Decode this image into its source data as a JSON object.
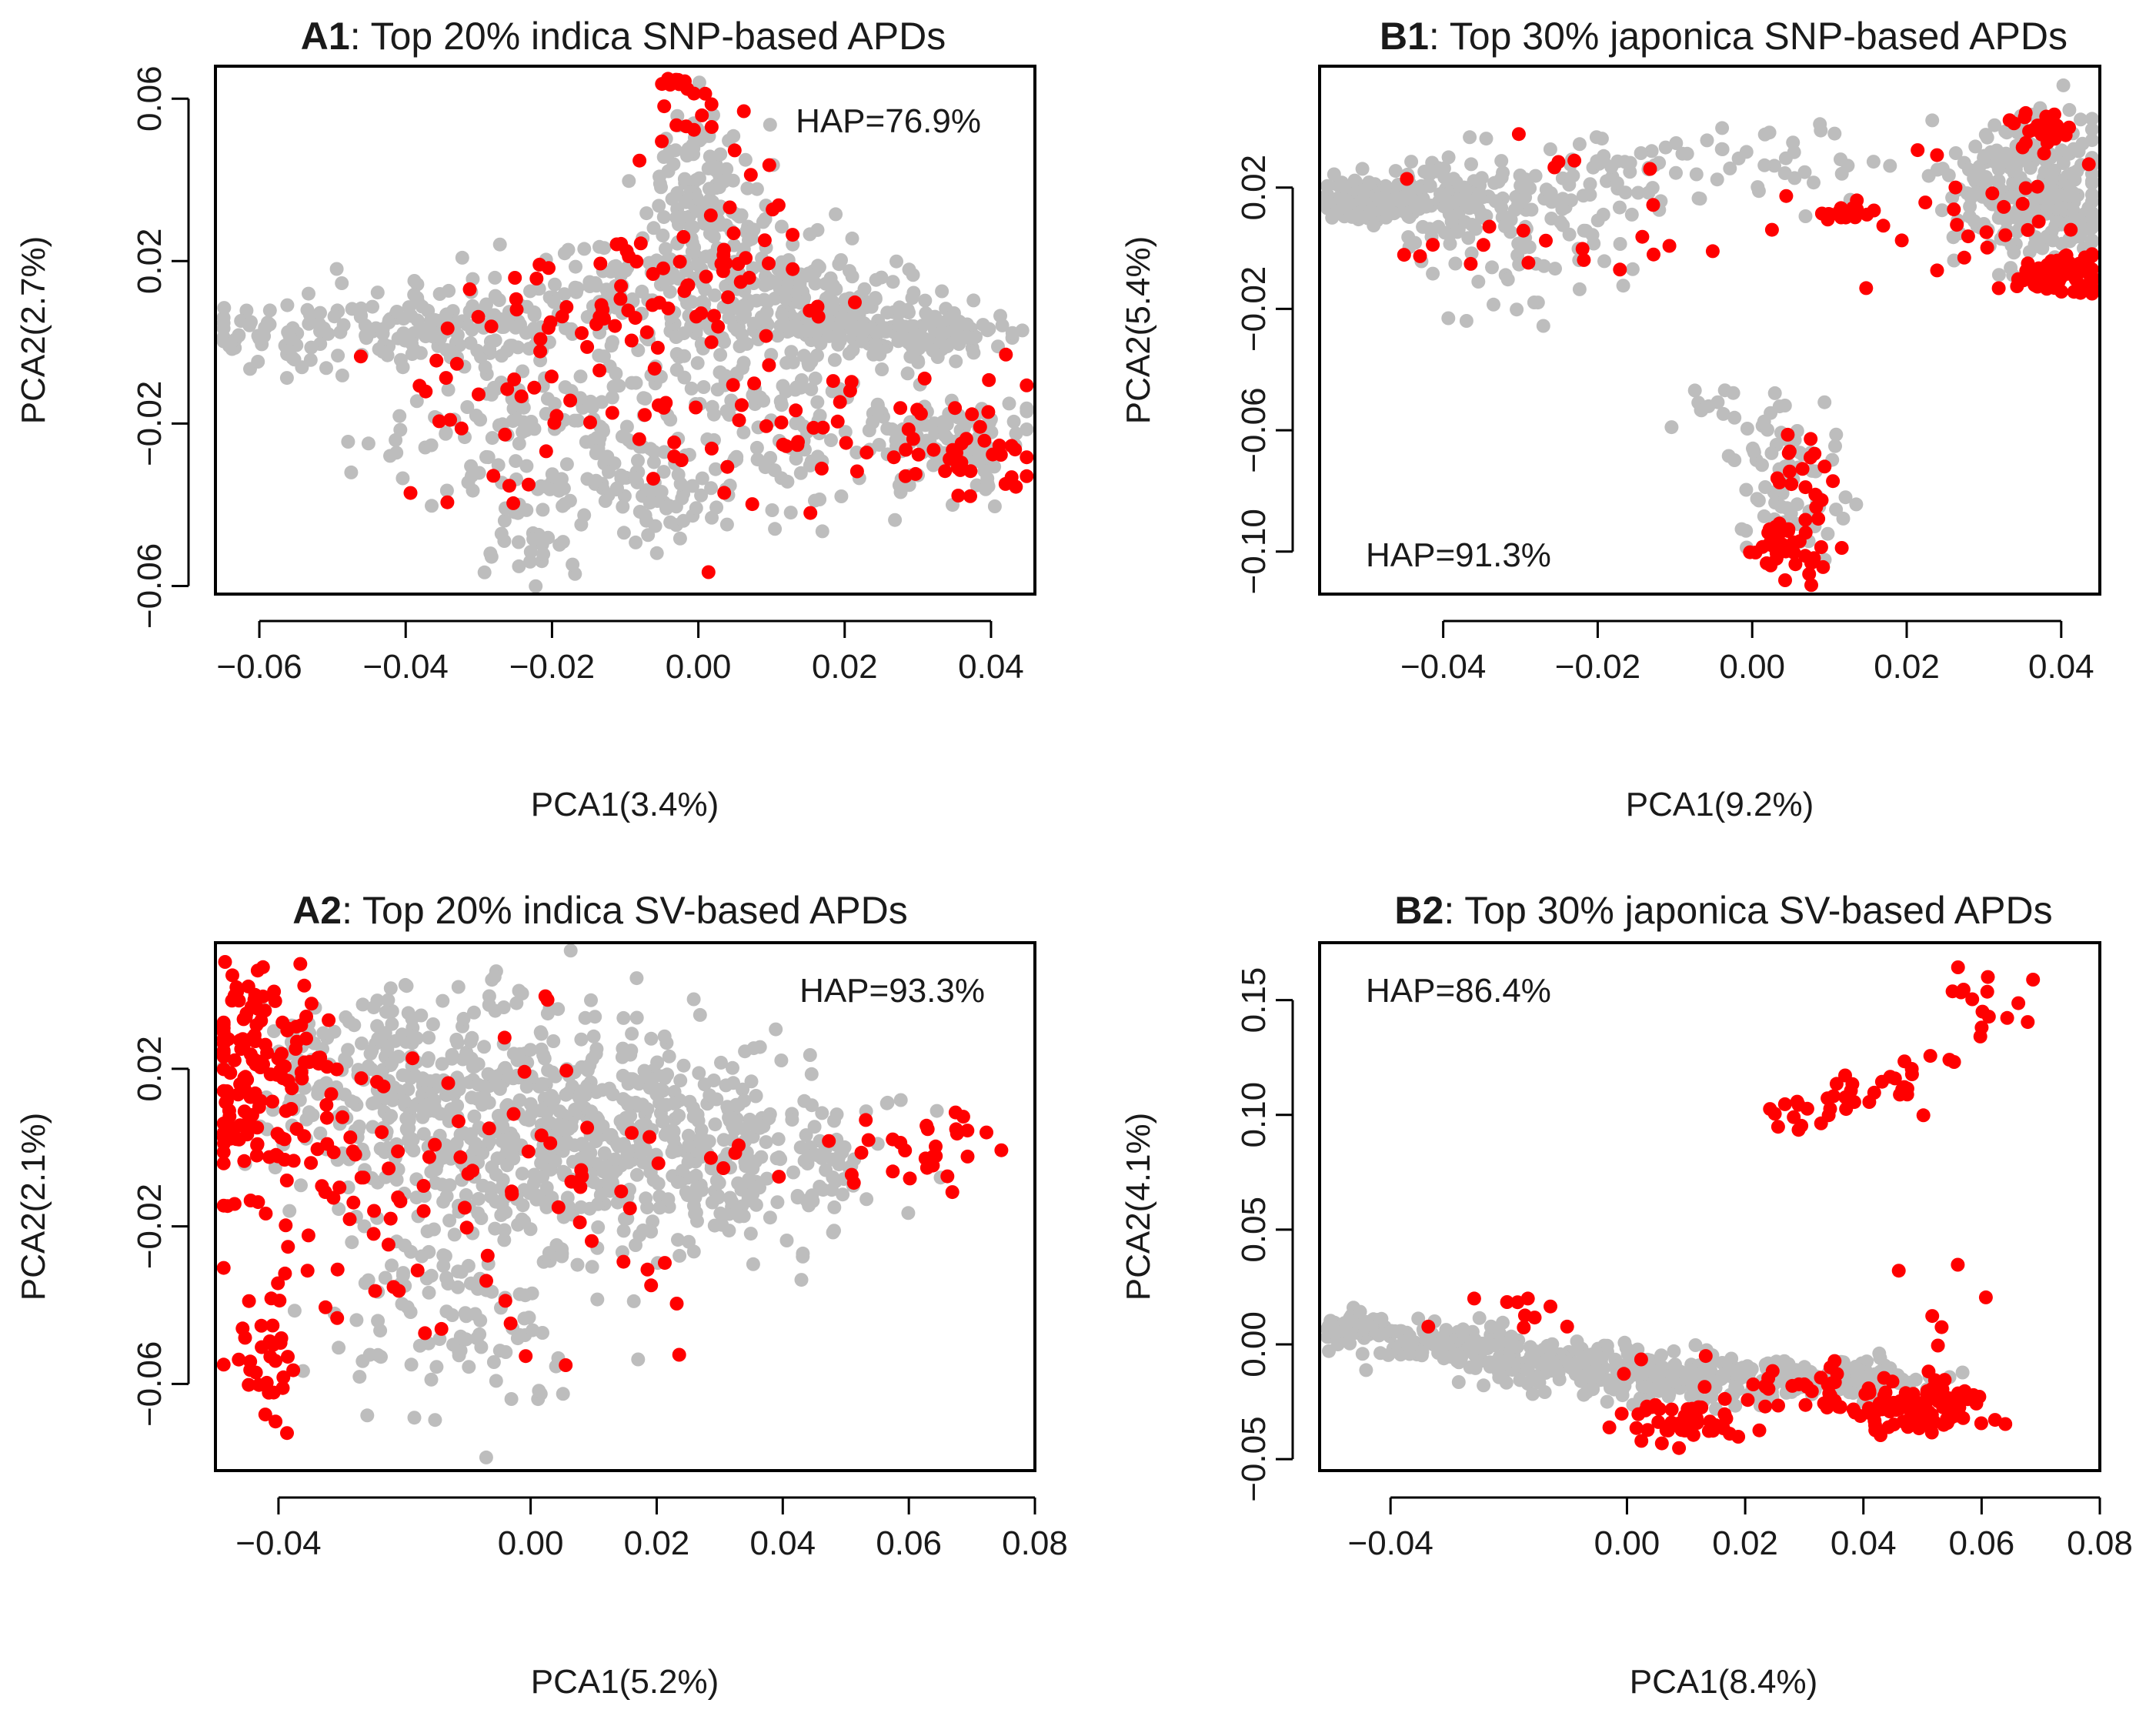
{
  "figure": {
    "background": "#ffffff",
    "point_colors": {
      "background": "#bdbdbd",
      "highlight": "#ff0000"
    }
  },
  "chart_data": [
    {
      "id": "A1",
      "type": "scatter",
      "title_bold": "A1",
      "title_rest": ": Top 20% indica SNP-based APDs",
      "xlabel": "PCA1(3.4%)",
      "ylabel": "PCA2(2.7%)",
      "xlim": [
        -0.066,
        0.046
      ],
      "ylim": [
        -0.062,
        0.068
      ],
      "xticks": [
        -0.06,
        -0.04,
        -0.02,
        0.0,
        0.02,
        0.04
      ],
      "xtick_labels": [
        "−0.06",
        "−0.04",
        "−0.02",
        "0.00",
        "0.02",
        "0.04"
      ],
      "yticks": [
        -0.06,
        -0.02,
        0.02,
        0.06
      ],
      "ytick_labels": [
        "−0.06",
        "−0.02",
        "0.02",
        "0.06"
      ],
      "annotation": "HAP=76.9%",
      "annotation_pos": "top-right",
      "series": [
        {
          "name": "background",
          "color": "#bdbdbd",
          "clusters": [
            {
              "cx": -0.058,
              "cy": 0.0,
              "sx": 0.006,
              "sy": 0.004,
              "n": 45
            },
            {
              "cx": -0.045,
              "cy": 0.006,
              "sx": 0.008,
              "sy": 0.004,
              "n": 70
            },
            {
              "cx": -0.03,
              "cy": 0.004,
              "sx": 0.008,
              "sy": 0.006,
              "n": 70
            },
            {
              "cx": -0.02,
              "cy": -0.02,
              "sx": 0.012,
              "sy": 0.012,
              "n": 170
            },
            {
              "cx": -0.022,
              "cy": -0.05,
              "sx": 0.003,
              "sy": 0.004,
              "n": 25
            },
            {
              "cx": -0.01,
              "cy": 0.012,
              "sx": 0.01,
              "sy": 0.006,
              "n": 90
            },
            {
              "cx": 0.0,
              "cy": 0.036,
              "sx": 0.004,
              "sy": 0.01,
              "n": 120
            },
            {
              "cx": 0.008,
              "cy": 0.012,
              "sx": 0.01,
              "sy": 0.01,
              "n": 170
            },
            {
              "cx": 0.02,
              "cy": 0.006,
              "sx": 0.008,
              "sy": 0.004,
              "n": 130
            },
            {
              "cx": 0.032,
              "cy": 0.002,
              "sx": 0.006,
              "sy": 0.003,
              "n": 70
            },
            {
              "cx": 0.015,
              "cy": -0.02,
              "sx": 0.012,
              "sy": 0.01,
              "n": 120
            },
            {
              "cx": 0.035,
              "cy": -0.026,
              "sx": 0.005,
              "sy": 0.006,
              "n": 90
            },
            {
              "cx": -0.008,
              "cy": -0.038,
              "sx": 0.01,
              "sy": 0.006,
              "n": 60
            }
          ]
        },
        {
          "name": "highlight",
          "color": "#ff0000",
          "clusters": [
            {
              "cx": -0.003,
              "cy": 0.064,
              "sx": 0.0015,
              "sy": 0.0015,
              "n": 12
            },
            {
              "cx": 0.0,
              "cy": 0.052,
              "sx": 0.005,
              "sy": 0.005,
              "n": 12
            },
            {
              "cx": -0.012,
              "cy": 0.01,
              "sx": 0.01,
              "sy": 0.007,
              "n": 40
            },
            {
              "cx": -0.022,
              "cy": -0.012,
              "sx": 0.012,
              "sy": 0.012,
              "n": 50
            },
            {
              "cx": 0.005,
              "cy": 0.024,
              "sx": 0.006,
              "sy": 0.01,
              "n": 25
            },
            {
              "cx": 0.012,
              "cy": -0.02,
              "sx": 0.012,
              "sy": 0.012,
              "n": 35
            },
            {
              "cx": 0.038,
              "cy": -0.03,
              "sx": 0.005,
              "sy": 0.004,
              "n": 25
            },
            {
              "cx": 0.03,
              "cy": -0.02,
              "sx": 0.006,
              "sy": 0.008,
              "n": 15
            }
          ]
        }
      ]
    },
    {
      "id": "B1",
      "type": "scatter",
      "title_bold": "B1",
      "title_rest": ": Top 30% japonica SNP-based APDs",
      "xlabel": "PCA1(9.2%)",
      "ylabel": "PCA2(5.4%)",
      "xlim": [
        -0.056,
        0.045
      ],
      "ylim": [
        -0.114,
        0.06
      ],
      "xticks": [
        -0.04,
        -0.02,
        0.0,
        0.02,
        0.04
      ],
      "xtick_labels": [
        "−0.04",
        "−0.02",
        "0.00",
        "0.02",
        "0.04"
      ],
      "yticks": [
        -0.1,
        -0.06,
        -0.02,
        0.02
      ],
      "ytick_labels": [
        "−0.10",
        "−0.06",
        "−0.02",
        "0.02"
      ],
      "annotation": "HAP=91.3%",
      "annotation_pos": "bottom-left",
      "series": [
        {
          "name": "background",
          "color": "#bdbdbd",
          "clusters": [
            {
              "cx": -0.05,
              "cy": 0.016,
              "sx": 0.004,
              "sy": 0.003,
              "n": 90
            },
            {
              "cx": -0.04,
              "cy": 0.016,
              "sx": 0.005,
              "sy": 0.006,
              "n": 80
            },
            {
              "cx": -0.03,
              "cy": 0.012,
              "sx": 0.008,
              "sy": 0.01,
              "n": 70
            },
            {
              "cx": -0.018,
              "cy": 0.024,
              "sx": 0.008,
              "sy": 0.008,
              "n": 55
            },
            {
              "cx": -0.03,
              "cy": -0.01,
              "sx": 0.006,
              "sy": 0.01,
              "n": 25
            },
            {
              "cx": 0.005,
              "cy": 0.028,
              "sx": 0.008,
              "sy": 0.008,
              "n": 30
            },
            {
              "cx": 0.035,
              "cy": 0.022,
              "sx": 0.005,
              "sy": 0.012,
              "n": 200
            },
            {
              "cx": 0.04,
              "cy": 0.012,
              "sx": 0.003,
              "sy": 0.006,
              "n": 60
            },
            {
              "cx": 0.003,
              "cy": -0.07,
              "sx": 0.003,
              "sy": 0.012,
              "n": 50
            },
            {
              "cx": 0.006,
              "cy": -0.09,
              "sx": 0.003,
              "sy": 0.006,
              "n": 25
            },
            {
              "cx": -0.005,
              "cy": -0.055,
              "sx": 0.004,
              "sy": 0.004,
              "n": 10
            }
          ]
        },
        {
          "name": "highlight",
          "color": "#ff0000",
          "clusters": [
            {
              "cx": 0.04,
              "cy": -0.008,
              "sx": 0.003,
              "sy": 0.003,
              "n": 80
            },
            {
              "cx": 0.038,
              "cy": 0.038,
              "sx": 0.003,
              "sy": 0.003,
              "n": 30
            },
            {
              "cx": 0.012,
              "cy": 0.012,
              "sx": 0.002,
              "sy": 0.0015,
              "n": 18
            },
            {
              "cx": 0.028,
              "cy": 0.01,
              "sx": 0.008,
              "sy": 0.012,
              "n": 25
            },
            {
              "cx": 0.005,
              "cy": -0.1,
              "sx": 0.003,
              "sy": 0.005,
              "n": 35
            },
            {
              "cx": 0.007,
              "cy": -0.075,
              "sx": 0.003,
              "sy": 0.012,
              "n": 20
            },
            {
              "cx": -0.022,
              "cy": 0.005,
              "sx": 0.012,
              "sy": 0.015,
              "n": 25
            }
          ]
        }
      ]
    },
    {
      "id": "A2",
      "type": "scatter",
      "title_bold": "A2",
      "title_rest": ": Top 20% indica SV-based APDs",
      "xlabel": "PCA1(5.2%)",
      "ylabel": "PCA2(2.1%)",
      "xlim": [
        -0.05,
        0.08
      ],
      "ylim": [
        -0.082,
        0.052
      ],
      "xticks": [
        -0.04,
        0.0,
        0.02,
        0.04,
        0.06,
        0.08
      ],
      "xtick_labels": [
        "−0.04",
        "0.00",
        "0.02",
        "0.04",
        "0.06",
        "0.08"
      ],
      "yticks": [
        -0.06,
        -0.02,
        0.02
      ],
      "ytick_labels": [
        "−0.06",
        "−0.02",
        "0.02"
      ],
      "annotation": "HAP=93.3%",
      "annotation_pos": "top-right",
      "series": [
        {
          "name": "background",
          "color": "#bdbdbd",
          "clusters": [
            {
              "cx": -0.015,
              "cy": 0.01,
              "sx": 0.012,
              "sy": 0.015,
              "n": 260
            },
            {
              "cx": 0.005,
              "cy": 0.005,
              "sx": 0.015,
              "sy": 0.015,
              "n": 320
            },
            {
              "cx": 0.025,
              "cy": 0.0,
              "sx": 0.012,
              "sy": 0.012,
              "n": 180
            },
            {
              "cx": 0.04,
              "cy": -0.005,
              "sx": 0.01,
              "sy": 0.01,
              "n": 80
            },
            {
              "cx": -0.01,
              "cy": -0.04,
              "sx": 0.012,
              "sy": 0.015,
              "n": 120
            },
            {
              "cx": -0.03,
              "cy": 0.025,
              "sx": 0.008,
              "sy": 0.008,
              "n": 60
            }
          ]
        },
        {
          "name": "highlight",
          "color": "#ff0000",
          "clusters": [
            {
              "cx": -0.045,
              "cy": 0.02,
              "sx": 0.003,
              "sy": 0.015,
              "n": 90
            },
            {
              "cx": -0.038,
              "cy": 0.02,
              "sx": 0.006,
              "sy": 0.012,
              "n": 45
            },
            {
              "cx": -0.043,
              "cy": -0.055,
              "sx": 0.003,
              "sy": 0.01,
              "n": 30
            },
            {
              "cx": -0.025,
              "cy": -0.01,
              "sx": 0.015,
              "sy": 0.02,
              "n": 70
            },
            {
              "cx": 0.062,
              "cy": 0.0,
              "sx": 0.007,
              "sy": 0.005,
              "n": 30
            },
            {
              "cx": 0.0,
              "cy": -0.01,
              "sx": 0.02,
              "sy": 0.02,
              "n": 45
            }
          ]
        }
      ]
    },
    {
      "id": "B2",
      "type": "scatter",
      "title_bold": "B2",
      "title_rest": ": Top 30% japonica SV-based APDs",
      "xlabel": "PCA1(8.4%)",
      "ylabel": "PCA2(4.1%)",
      "xlim": [
        -0.052,
        0.08
      ],
      "ylim": [
        -0.055,
        0.175
      ],
      "xticks": [
        -0.04,
        0.0,
        0.02,
        0.04,
        0.06,
        0.08
      ],
      "xtick_labels": [
        "−0.04",
        "0.00",
        "0.02",
        "0.04",
        "0.06",
        "0.08"
      ],
      "yticks": [
        -0.05,
        0.0,
        0.05,
        0.1,
        0.15
      ],
      "ytick_labels": [
        "−0.05",
        "0.00",
        "0.05",
        "0.10",
        "0.15"
      ],
      "annotation": "HAP=86.4%",
      "annotation_pos": "top-left",
      "series": [
        {
          "name": "background",
          "color": "#bdbdbd",
          "clusters": [
            {
              "cx": -0.045,
              "cy": 0.008,
              "sx": 0.003,
              "sy": 0.003,
              "n": 70
            },
            {
              "cx": -0.03,
              "cy": 0.0,
              "sx": 0.007,
              "sy": 0.005,
              "n": 110
            },
            {
              "cx": -0.012,
              "cy": -0.008,
              "sx": 0.007,
              "sy": 0.005,
              "n": 110
            },
            {
              "cx": 0.005,
              "cy": -0.014,
              "sx": 0.008,
              "sy": 0.005,
              "n": 130
            },
            {
              "cx": 0.025,
              "cy": -0.016,
              "sx": 0.01,
              "sy": 0.005,
              "n": 120
            },
            {
              "cx": 0.04,
              "cy": -0.016,
              "sx": 0.006,
              "sy": 0.004,
              "n": 60
            }
          ]
        },
        {
          "name": "highlight",
          "color": "#ff0000",
          "clusters": [
            {
              "cx": 0.01,
              "cy": -0.034,
              "sx": 0.005,
              "sy": 0.004,
              "n": 45
            },
            {
              "cx": 0.05,
              "cy": -0.028,
              "sx": 0.006,
              "sy": 0.005,
              "n": 90
            },
            {
              "cx": 0.03,
              "cy": -0.02,
              "sx": 0.012,
              "sy": 0.006,
              "n": 50
            },
            {
              "cx": -0.02,
              "cy": 0.012,
              "sx": 0.008,
              "sy": 0.006,
              "n": 10
            },
            {
              "cx": 0.06,
              "cy": 0.145,
              "sx": 0.004,
              "sy": 0.008,
              "n": 15
            },
            {
              "cx": 0.04,
              "cy": 0.11,
              "sx": 0.005,
              "sy": 0.006,
              "n": 20
            },
            {
              "cx": 0.028,
              "cy": 0.1,
              "sx": 0.004,
              "sy": 0.005,
              "n": 12
            },
            {
              "cx": 0.05,
              "cy": 0.125,
              "sx": 0.004,
              "sy": 0.006,
              "n": 8
            },
            {
              "cx": 0.055,
              "cy": 0.02,
              "sx": 0.008,
              "sy": 0.015,
              "n": 6
            }
          ]
        }
      ]
    }
  ]
}
